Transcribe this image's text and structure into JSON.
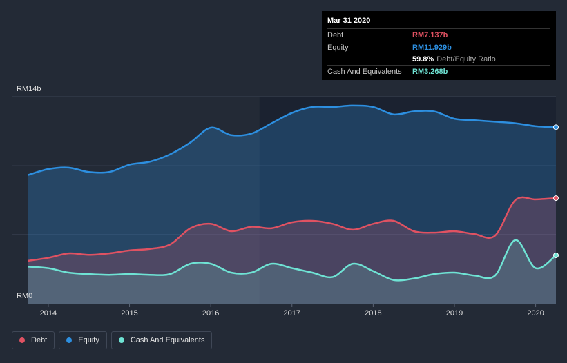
{
  "tooltip": {
    "date": "Mar 31 2020",
    "debt_label": "Debt",
    "debt_value": "RM7.137b",
    "equity_label": "Equity",
    "equity_value": "RM11.929b",
    "ratio_value": "59.8%",
    "ratio_label": "Debt/Equity Ratio",
    "cash_label": "Cash And Equivalents",
    "cash_value": "RM3.268b"
  },
  "colors": {
    "debt": "#e05262",
    "equity": "#2d8fe0",
    "cash": "#6fe3d4",
    "background": "#232a36"
  },
  "legend": [
    {
      "label": "Debt",
      "color": "#e05262"
    },
    {
      "label": "Equity",
      "color": "#2d8fe0"
    },
    {
      "label": "Cash And Equivalents",
      "color": "#6fe3d4"
    }
  ],
  "chart_data": {
    "type": "area",
    "y_tick_labels": [
      "RM14b",
      "RM0"
    ],
    "ylim": [
      0,
      14
    ],
    "xlim": [
      2013.55,
      2020.25
    ],
    "x_ticks": [
      {
        "value": 2014,
        "label": "2014"
      },
      {
        "value": 2015,
        "label": "2015"
      },
      {
        "value": 2016,
        "label": "2016"
      },
      {
        "value": 2017,
        "label": "2017"
      },
      {
        "value": 2018,
        "label": "2018"
      },
      {
        "value": 2019,
        "label": "2019"
      },
      {
        "value": 2020,
        "label": "2020"
      }
    ],
    "grid": true,
    "series": [
      {
        "name": "Equity",
        "points": [
          [
            2013.75,
            8.7
          ],
          [
            2014.0,
            9.1
          ],
          [
            2014.25,
            9.2
          ],
          [
            2014.5,
            8.9
          ],
          [
            2014.75,
            8.9
          ],
          [
            2015.0,
            9.4
          ],
          [
            2015.25,
            9.6
          ],
          [
            2015.5,
            10.1
          ],
          [
            2015.75,
            10.9
          ],
          [
            2016.0,
            11.9
          ],
          [
            2016.25,
            11.4
          ],
          [
            2016.5,
            11.5
          ],
          [
            2016.75,
            12.2
          ],
          [
            2017.0,
            12.9
          ],
          [
            2017.25,
            13.3
          ],
          [
            2017.5,
            13.3
          ],
          [
            2017.75,
            13.4
          ],
          [
            2018.0,
            13.3
          ],
          [
            2018.25,
            12.8
          ],
          [
            2018.5,
            13.0
          ],
          [
            2018.75,
            13.0
          ],
          [
            2019.0,
            12.5
          ],
          [
            2019.25,
            12.4
          ],
          [
            2019.5,
            12.3
          ],
          [
            2019.75,
            12.2
          ],
          [
            2020.0,
            12.0
          ],
          [
            2020.25,
            11.93
          ]
        ]
      },
      {
        "name": "Debt",
        "points": [
          [
            2013.75,
            2.9
          ],
          [
            2014.0,
            3.1
          ],
          [
            2014.25,
            3.4
          ],
          [
            2014.5,
            3.3
          ],
          [
            2014.75,
            3.4
          ],
          [
            2015.0,
            3.6
          ],
          [
            2015.25,
            3.7
          ],
          [
            2015.5,
            4.0
          ],
          [
            2015.75,
            5.1
          ],
          [
            2016.0,
            5.4
          ],
          [
            2016.25,
            4.9
          ],
          [
            2016.5,
            5.2
          ],
          [
            2016.75,
            5.1
          ],
          [
            2017.0,
            5.5
          ],
          [
            2017.25,
            5.6
          ],
          [
            2017.5,
            5.4
          ],
          [
            2017.75,
            5.0
          ],
          [
            2018.0,
            5.4
          ],
          [
            2018.25,
            5.6
          ],
          [
            2018.5,
            4.9
          ],
          [
            2018.75,
            4.8
          ],
          [
            2019.0,
            4.9
          ],
          [
            2019.25,
            4.7
          ],
          [
            2019.5,
            4.6
          ],
          [
            2019.75,
            7.0
          ],
          [
            2020.0,
            7.05
          ],
          [
            2020.25,
            7.137
          ]
        ]
      },
      {
        "name": "Cash And Equivalents",
        "points": [
          [
            2013.75,
            2.5
          ],
          [
            2014.0,
            2.4
          ],
          [
            2014.25,
            2.1
          ],
          [
            2014.5,
            2.0
          ],
          [
            2014.75,
            1.95
          ],
          [
            2015.0,
            2.0
          ],
          [
            2015.25,
            1.95
          ],
          [
            2015.5,
            2.0
          ],
          [
            2015.75,
            2.7
          ],
          [
            2016.0,
            2.7
          ],
          [
            2016.25,
            2.1
          ],
          [
            2016.5,
            2.1
          ],
          [
            2016.75,
            2.7
          ],
          [
            2017.0,
            2.4
          ],
          [
            2017.25,
            2.1
          ],
          [
            2017.5,
            1.8
          ],
          [
            2017.75,
            2.7
          ],
          [
            2018.0,
            2.2
          ],
          [
            2018.25,
            1.6
          ],
          [
            2018.5,
            1.7
          ],
          [
            2018.75,
            2.0
          ],
          [
            2019.0,
            2.1
          ],
          [
            2019.25,
            1.9
          ],
          [
            2019.5,
            1.9
          ],
          [
            2019.75,
            4.3
          ],
          [
            2020.0,
            2.4
          ],
          [
            2020.25,
            3.268
          ]
        ]
      }
    ]
  }
}
